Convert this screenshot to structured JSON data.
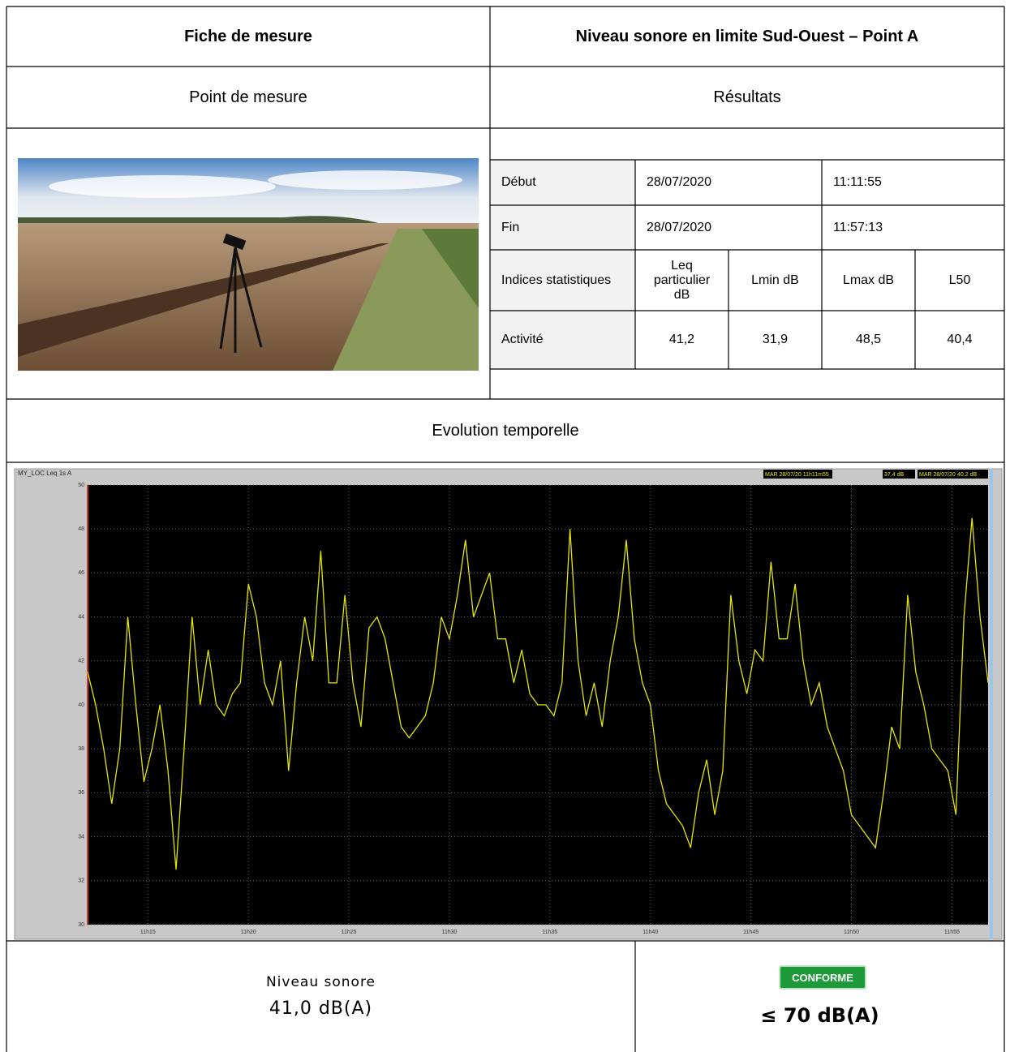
{
  "header": {
    "left": "Fiche de mesure",
    "right": "Niveau sonore en limite Sud-Ouest – Point A"
  },
  "subheader": {
    "left": "Point de mesure",
    "right": "Résultats"
  },
  "results": {
    "rows": [
      [
        "Début",
        "28/07/2020",
        "11:11:55"
      ],
      [
        "Fin",
        "28/07/2020",
        "11:57:13"
      ],
      [
        "Indices statistiques",
        "Leq particulier dB",
        "Lmin dB",
        "Lmax dB",
        "L50"
      ],
      [
        "Activité",
        "41,2",
        "31,9",
        "48,5",
        "40,4"
      ]
    ]
  },
  "section_title": "Evolution temporelle",
  "chart_data": {
    "type": "line",
    "title": "MY_LOC  Leq 1s  A",
    "annotations": [
      "MAR 28/07/20 11h11m55",
      "37.4 dB",
      "MAR 28/07/20 11h57m13",
      "40.2 dB"
    ],
    "x": [
      12,
      12.4,
      12.8,
      13.2,
      13.6,
      14,
      14.4,
      14.8,
      15.2,
      15.6,
      16,
      16.4,
      16.8,
      17.2,
      17.6,
      18,
      18.4,
      18.8,
      19.2,
      19.6,
      20,
      20.4,
      20.8,
      21.2,
      21.6,
      22,
      22.4,
      22.8,
      23.2,
      23.6,
      24,
      24.4,
      24.8,
      25.2,
      25.6,
      26,
      26.4,
      26.8,
      27.2,
      27.6,
      28,
      28.4,
      28.8,
      29.2,
      29.6,
      30,
      30.4,
      30.8,
      31.2,
      31.6,
      32,
      32.4,
      32.8,
      33.2,
      33.6,
      34,
      34.4,
      34.8,
      35.2,
      35.6,
      36,
      36.4,
      36.8,
      37.2,
      37.6,
      38,
      38.4,
      38.8,
      39.2,
      39.6,
      40,
      40.4,
      40.8,
      41.2,
      41.6,
      42,
      42.4,
      42.8,
      43.2,
      43.6,
      44,
      44.4,
      44.8,
      45.2,
      45.6,
      46,
      46.4,
      46.8,
      47.2,
      47.6,
      48,
      48.4,
      48.8,
      49.2,
      49.6,
      50,
      50.4,
      50.8,
      51.2,
      51.6,
      52,
      52.4,
      52.8,
      53.2,
      53.6,
      54,
      54.4,
      54.8,
      55.2,
      55.6,
      56,
      56.4,
      56.8
    ],
    "series": [
      {
        "color": "#e6e600",
        "values": [
          41.5,
          40,
          38,
          35.5,
          38,
          44,
          40,
          36.5,
          38,
          40,
          37,
          32.5,
          38,
          44,
          40,
          42.5,
          40,
          39.5,
          40.5,
          41,
          45.5,
          44,
          41,
          40,
          42,
          37,
          41,
          44,
          42,
          47,
          41,
          41,
          45,
          41,
          39,
          43.5,
          44,
          43,
          41,
          39,
          38.5,
          39,
          39.5,
          41,
          44,
          43,
          45,
          47.5,
          44,
          45,
          46,
          43,
          43,
          41,
          42.5,
          40.5,
          40,
          40,
          39.5,
          41,
          48,
          42,
          39.5,
          41,
          39,
          42,
          44,
          47.5,
          43,
          41,
          40,
          37,
          35.5,
          35,
          34.5,
          33.5,
          36,
          37.5,
          35,
          37,
          45,
          42,
          40.5,
          42.5,
          42,
          46.5,
          43,
          43,
          45.5,
          42,
          40,
          41,
          39,
          38,
          37,
          35,
          34.5,
          34,
          33.5,
          36,
          39,
          38,
          45,
          41.5,
          40,
          38,
          37.5,
          37,
          35,
          44,
          48.5,
          44,
          41
        ]
      }
    ],
    "xlim": [
      12,
      56.8
    ],
    "ylim": [
      30,
      50
    ],
    "xticks": [
      {
        "value": 15,
        "label": "11h15"
      },
      {
        "value": 20,
        "label": "11h20"
      },
      {
        "value": 25,
        "label": "11h25"
      },
      {
        "value": 30,
        "label": "11h30"
      },
      {
        "value": 35,
        "label": "11h35"
      },
      {
        "value": 40,
        "label": "11h40"
      },
      {
        "value": 45,
        "label": "11h45"
      },
      {
        "value": 50,
        "label": "11h50"
      },
      {
        "value": 55,
        "label": "11h55"
      }
    ],
    "yticks": [
      30,
      32,
      34,
      36,
      38,
      40,
      42,
      44,
      46,
      48,
      50
    ],
    "grid": true
  },
  "footer": {
    "label": "Niveau sonore",
    "value": "41,0 dB(A)",
    "badge": "CONFORME",
    "limit": "≤ 70 dB(A)"
  }
}
